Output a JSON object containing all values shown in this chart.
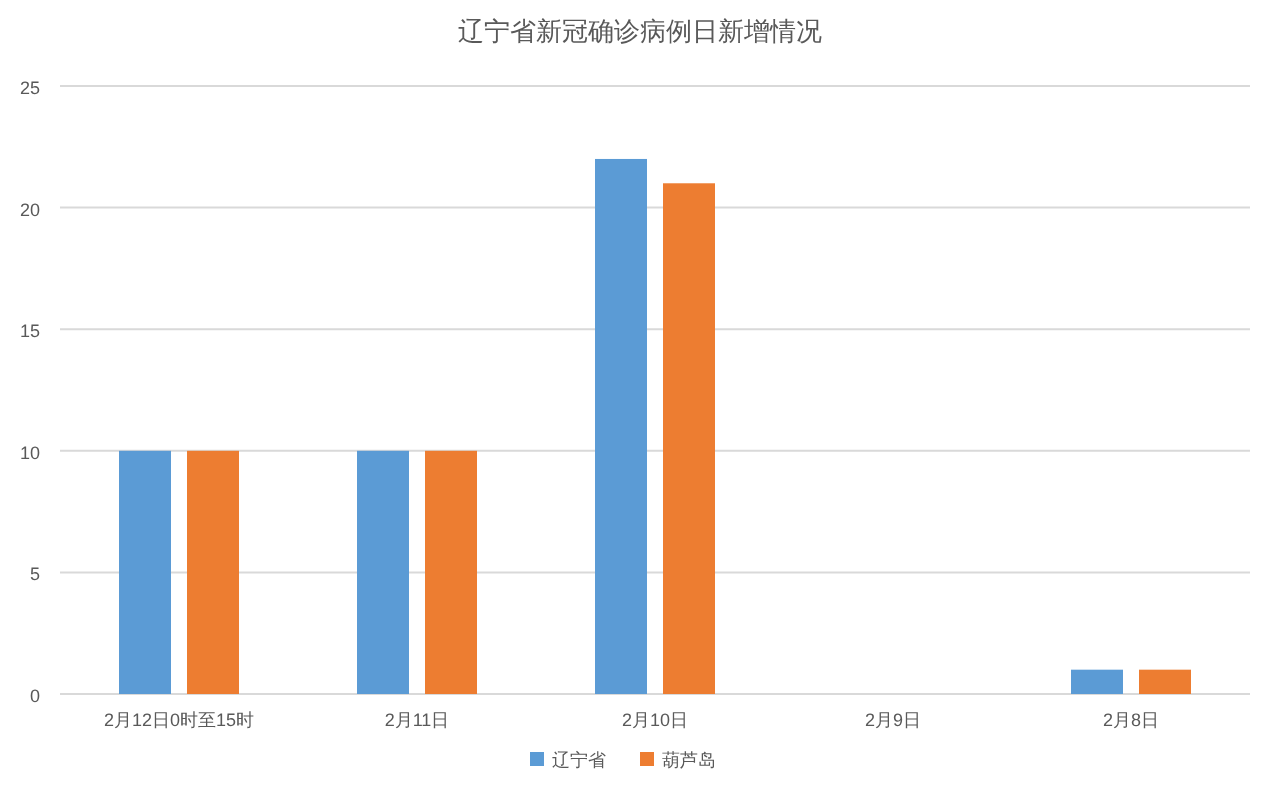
{
  "chart_data": {
    "type": "bar",
    "title": "辽宁省新冠确诊病例日新增情况",
    "categories": [
      "2月12日0时至15时",
      "2月11日",
      "2月10日",
      "2月9日",
      "2月8日"
    ],
    "series": [
      {
        "name": "辽宁省",
        "color": "#5b9bd5",
        "values": [
          10,
          10,
          22,
          0,
          1
        ]
      },
      {
        "name": "葫芦岛",
        "color": "#ed7d31",
        "values": [
          10,
          10,
          21,
          0,
          1
        ]
      }
    ],
    "ylim": [
      0,
      25
    ],
    "yticks": [
      0,
      5,
      10,
      15,
      20,
      25
    ],
    "grid": "y",
    "legend": "bottom"
  }
}
